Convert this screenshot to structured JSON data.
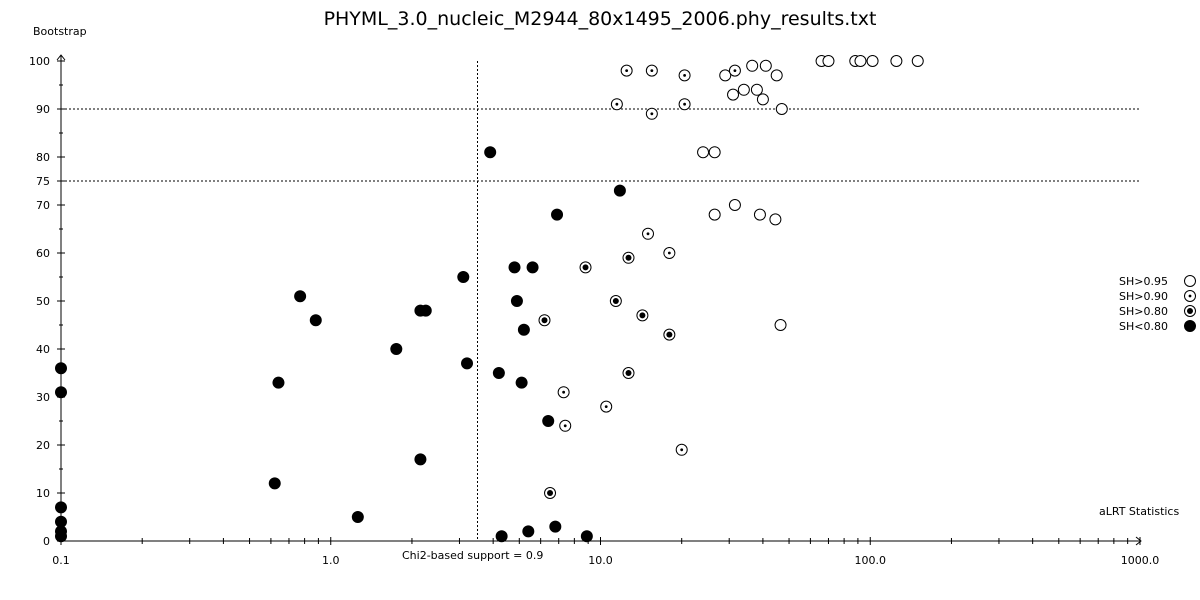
{
  "chart_data": {
    "type": "scatter",
    "title": "PHYML_3.0_nucleic_M2944_80x1495_2006.phy_results.txt",
    "xlabel": "aLRT Statistics",
    "ylabel": "Bootstrap",
    "x_scale": "log",
    "xlim": [
      0.1,
      1000.0
    ],
    "ylim": [
      0,
      100
    ],
    "x_ticks": [
      "0.1",
      "1.0",
      "10.0",
      "100.0",
      "1000.0"
    ],
    "y_ticks": [
      "0",
      "10",
      "20",
      "30",
      "40",
      "50",
      "60",
      "70",
      "75",
      "80",
      "90",
      "100"
    ],
    "reference_lines": {
      "vertical": {
        "x": 3.5,
        "label": "Chi2-based support = 0.9"
      },
      "horizontal": [
        75,
        90
      ]
    },
    "legend_position": "right",
    "series": [
      {
        "name": "SH>0.95",
        "marker": "open-circle",
        "points": [
          [
            66,
            100
          ],
          [
            70,
            100
          ],
          [
            88,
            100
          ],
          [
            92,
            100
          ],
          [
            102,
            100
          ],
          [
            125,
            100
          ],
          [
            150,
            100
          ],
          [
            36.5,
            99
          ],
          [
            41,
            99
          ],
          [
            29,
            97
          ],
          [
            45,
            97
          ],
          [
            34,
            94
          ],
          [
            38,
            94
          ],
          [
            31,
            93
          ],
          [
            40,
            92
          ],
          [
            47,
            90
          ],
          [
            24,
            81
          ],
          [
            26.5,
            81
          ],
          [
            31.5,
            70
          ],
          [
            26.5,
            68
          ],
          [
            39,
            68
          ],
          [
            44.5,
            67
          ],
          [
            46.5,
            45
          ]
        ]
      },
      {
        "name": "SH>0.90",
        "marker": "dotted-circle",
        "points": [
          [
            12.5,
            98
          ],
          [
            15.5,
            98
          ],
          [
            31.5,
            98
          ],
          [
            20.5,
            97
          ],
          [
            11.5,
            91
          ],
          [
            20.5,
            91
          ],
          [
            15.5,
            89
          ],
          [
            15,
            64
          ],
          [
            18,
            60
          ],
          [
            7.3,
            31
          ],
          [
            10.5,
            28
          ],
          [
            7.4,
            24
          ],
          [
            20,
            19
          ]
        ]
      },
      {
        "name": "SH>0.80",
        "marker": "bullseye",
        "points": [
          [
            8.8,
            57
          ],
          [
            12.7,
            59
          ],
          [
            11.4,
            50
          ],
          [
            14.3,
            47
          ],
          [
            6.2,
            46
          ],
          [
            18,
            43
          ],
          [
            12.7,
            35
          ],
          [
            6.5,
            10
          ]
        ]
      },
      {
        "name": "SH<0.80",
        "marker": "filled-circle",
        "points": [
          [
            3.9,
            81
          ],
          [
            11.8,
            73
          ],
          [
            6.9,
            68
          ],
          [
            4.8,
            57
          ],
          [
            5.6,
            57
          ],
          [
            3.1,
            55
          ],
          [
            0.77,
            51
          ],
          [
            4.9,
            50
          ],
          [
            2.15,
            48
          ],
          [
            2.25,
            48
          ],
          [
            0.88,
            46
          ],
          [
            5.2,
            44
          ],
          [
            1.75,
            40
          ],
          [
            3.2,
            37
          ],
          [
            0.1,
            36
          ],
          [
            4.2,
            35
          ],
          [
            0.64,
            33
          ],
          [
            5.1,
            33
          ],
          [
            0.1,
            31
          ],
          [
            6.4,
            25
          ],
          [
            2.15,
            17
          ],
          [
            0.62,
            12
          ],
          [
            0.1,
            7
          ],
          [
            1.26,
            5
          ],
          [
            0.1,
            4
          ],
          [
            6.8,
            3
          ],
          [
            0.1,
            2
          ],
          [
            5.4,
            2
          ],
          [
            4.3,
            1
          ],
          [
            8.9,
            1
          ],
          [
            0.1,
            1
          ]
        ]
      }
    ]
  }
}
